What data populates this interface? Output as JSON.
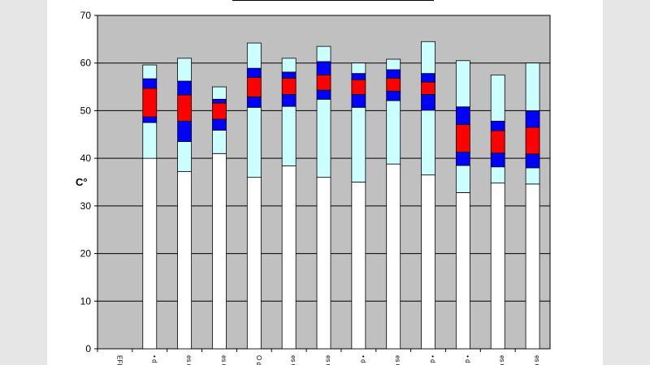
{
  "chart_data": {
    "type": "bar",
    "subtype": "stacked-range",
    "ylabel": "C°",
    "ylim": [
      0,
      70
    ],
    "yticks": [
      0,
      10,
      20,
      30,
      40,
      50,
      60,
      70
    ],
    "grid": true,
    "colors": {
      "plot_bg": "#c0c0c0",
      "base": "#ffffff",
      "light": "#ccffff",
      "blue": "#0000ff",
      "red": "#ff0000",
      "grid": "#000000"
    },
    "categories": [
      "EFI",
      "• d",
      "es us",
      "es us",
      "O d",
      "es us",
      "es us",
      "• d",
      "es us",
      "• d",
      "• d",
      "es us",
      "es us"
    ],
    "bars": [
      null,
      {
        "base": 40.0,
        "lower_light": 47.5,
        "lower_blue": 48.7,
        "red": 54.7,
        "upper_blue": 56.7,
        "top": 59.6
      },
      {
        "base": 37.2,
        "lower_light": 43.5,
        "lower_blue": 47.8,
        "red": 53.3,
        "upper_blue": 56.2,
        "top": 61.0
      },
      {
        "base": 41.0,
        "lower_light": 45.9,
        "lower_blue": 48.2,
        "red": 51.6,
        "upper_blue": 52.4,
        "top": 55.0
      },
      {
        "base": 36.0,
        "lower_light": 50.7,
        "lower_blue": 52.9,
        "red": 57.0,
        "upper_blue": 58.9,
        "top": 64.2
      },
      {
        "base": 38.4,
        "lower_light": 50.9,
        "lower_blue": 53.4,
        "red": 56.8,
        "upper_blue": 58.1,
        "top": 61.0
      },
      {
        "base": 36.0,
        "lower_light": 52.4,
        "lower_blue": 54.3,
        "red": 57.5,
        "upper_blue": 60.3,
        "top": 63.5
      },
      {
        "base": 35.0,
        "lower_light": 50.7,
        "lower_blue": 53.4,
        "red": 56.5,
        "upper_blue": 57.8,
        "top": 60.0
      },
      {
        "base": 38.8,
        "lower_light": 52.1,
        "lower_blue": 54.1,
        "red": 56.8,
        "upper_blue": 58.6,
        "top": 60.8
      },
      {
        "base": 36.5,
        "lower_light": 50.1,
        "lower_blue": 53.4,
        "red": 56.0,
        "upper_blue": 57.8,
        "top": 64.5
      },
      {
        "base": 32.8,
        "lower_light": 38.5,
        "lower_blue": 41.3,
        "red": 47.1,
        "upper_blue": 50.8,
        "top": 60.5
      },
      {
        "base": 34.8,
        "lower_light": 38.2,
        "lower_blue": 41.1,
        "red": 45.8,
        "upper_blue": 47.8,
        "top": 57.5
      },
      {
        "base": 34.6,
        "lower_light": 38.0,
        "lower_blue": 40.9,
        "red": 46.5,
        "upper_blue": 50.0,
        "top": 60.0
      }
    ]
  }
}
